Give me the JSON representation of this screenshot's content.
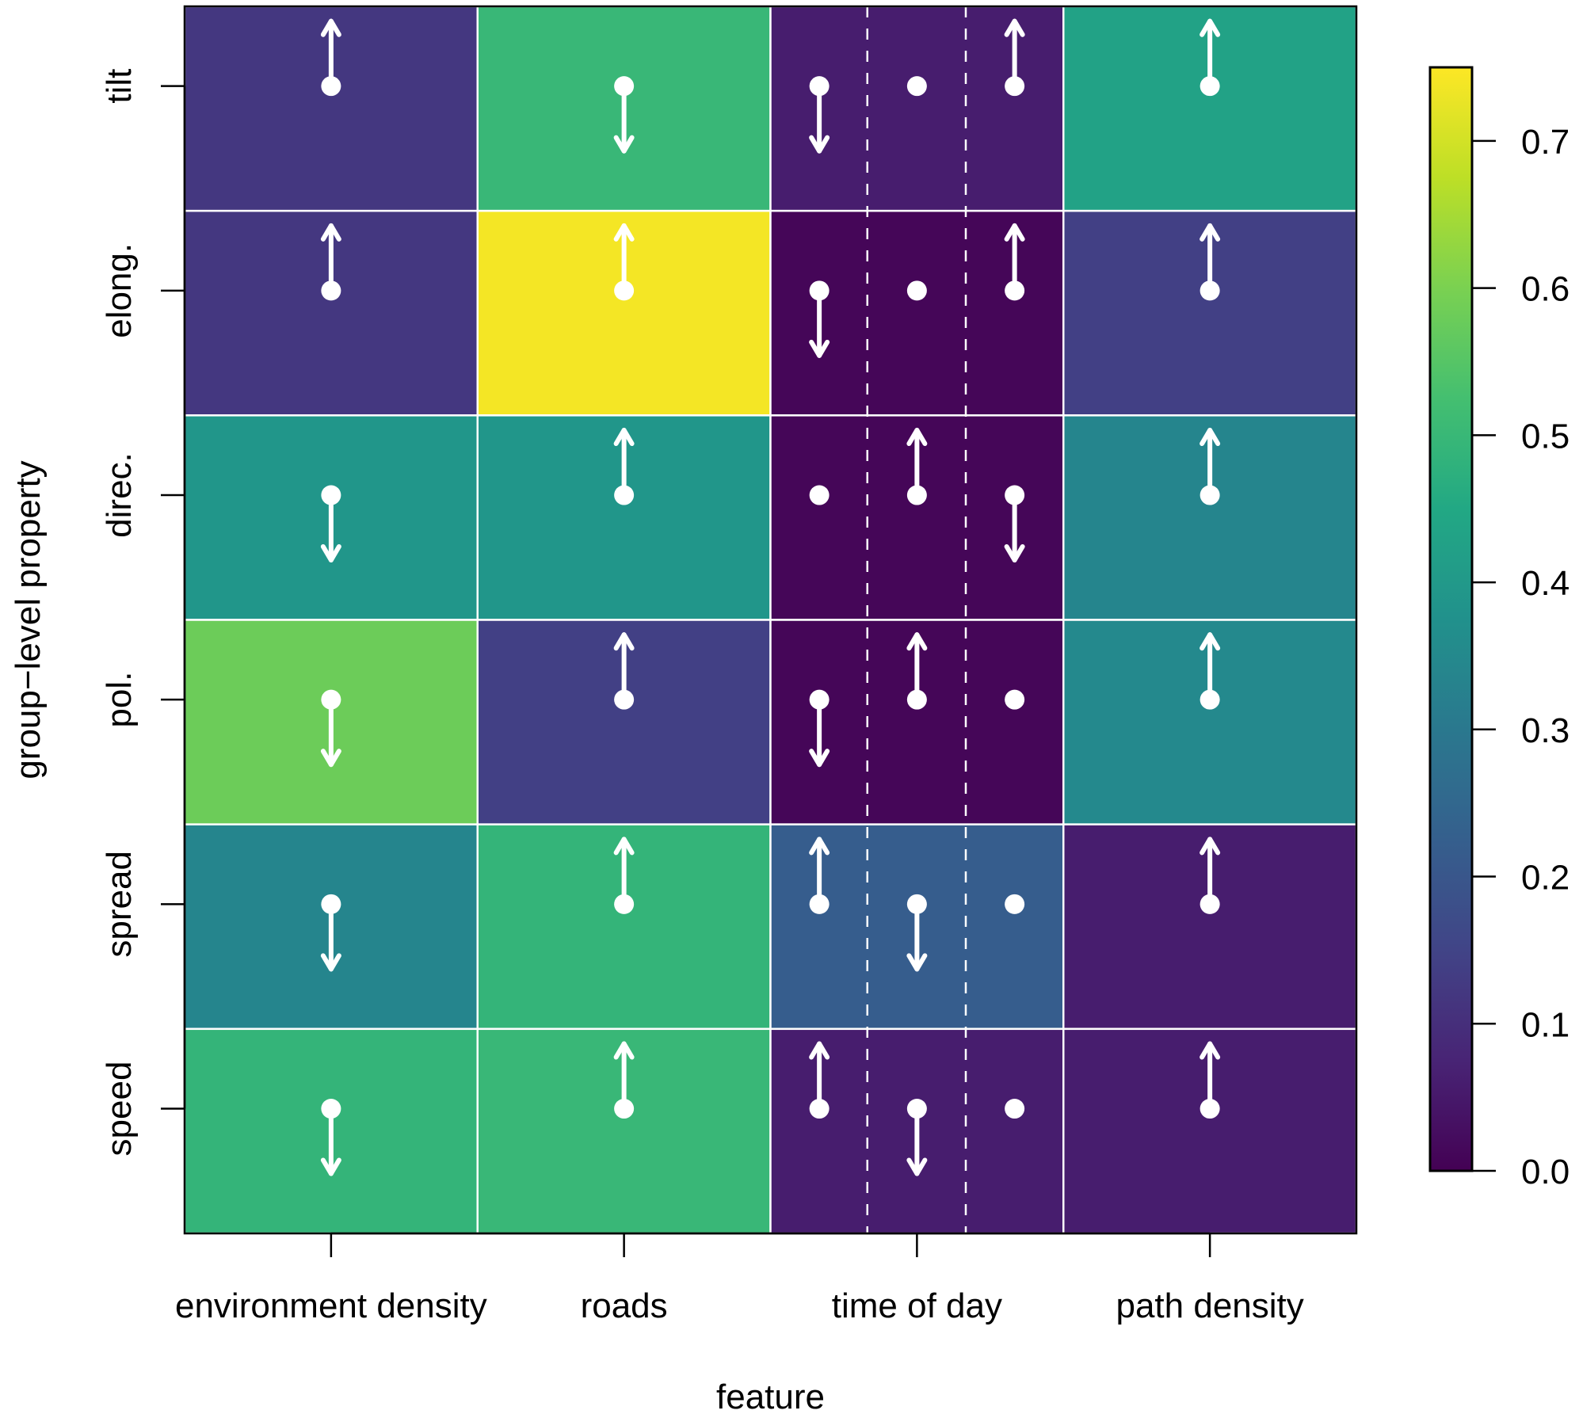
{
  "chart_data": {
    "type": "heatmap",
    "title": "",
    "xlabel": "feature",
    "ylabel": "group−level property",
    "x_categories": [
      "environment density",
      "roads",
      "time of day",
      "path density"
    ],
    "y_categories": [
      "tilt",
      "elong.",
      "direc.",
      "pol.",
      "spread",
      "speed"
    ],
    "values": [
      [
        0.12,
        0.5,
        0.06,
        0.43
      ],
      [
        0.12,
        0.74,
        0.01,
        0.14
      ],
      [
        0.39,
        0.39,
        0.01,
        0.34
      ],
      [
        0.58,
        0.14,
        0.01,
        0.35
      ],
      [
        0.34,
        0.49,
        0.22,
        0.06
      ],
      [
        0.49,
        0.5,
        0.06,
        0.06
      ]
    ],
    "markers": [
      [
        [
          "up"
        ],
        [
          "down"
        ],
        [
          "down",
          "none",
          "up"
        ],
        [
          "up"
        ]
      ],
      [
        [
          "up"
        ],
        [
          "up"
        ],
        [
          "down",
          "none",
          "up"
        ],
        [
          "up"
        ]
      ],
      [
        [
          "down"
        ],
        [
          "up"
        ],
        [
          "none",
          "up",
          "down"
        ],
        [
          "up"
        ]
      ],
      [
        [
          "down"
        ],
        [
          "up"
        ],
        [
          "down",
          "up",
          "none"
        ],
        [
          "up"
        ]
      ],
      [
        [
          "down"
        ],
        [
          "up"
        ],
        [
          "up",
          "down",
          "none"
        ],
        [
          "up"
        ]
      ],
      [
        [
          "down"
        ],
        [
          "up"
        ],
        [
          "up",
          "down",
          "none"
        ],
        [
          "up"
        ]
      ]
    ],
    "subdivided_column": "time of day",
    "colorbar": {
      "colormap": "viridis",
      "range": [
        0.0,
        0.75
      ],
      "ticks": [
        0.0,
        0.1,
        0.2,
        0.3,
        0.4,
        0.5,
        0.6,
        0.7
      ],
      "tick_labels": [
        "0.0",
        "0.1",
        "0.2",
        "0.3",
        "0.4",
        "0.5",
        "0.6",
        "0.7"
      ],
      "placement": "right"
    },
    "grid": false
  },
  "colors": {
    "cell_separator": "#ffffff",
    "marker": "#ffffff",
    "axis": "#000000"
  }
}
